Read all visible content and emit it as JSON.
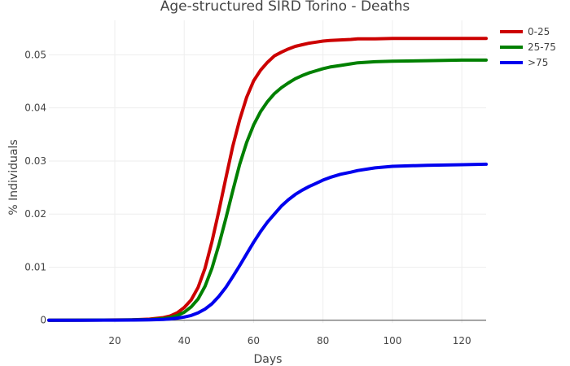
{
  "chart_data": {
    "type": "line",
    "title": "Age-structured SIRD Torino - Deaths",
    "xlabel": "Days",
    "ylabel": "% Individuals",
    "xlim": [
      1,
      127
    ],
    "ylim": [
      -0.0005,
      0.0565
    ],
    "grid": true,
    "legend_position": "top-right",
    "x_ticks": [
      20,
      40,
      60,
      80,
      100,
      120
    ],
    "x_tick_labels": [
      "20",
      "40",
      "60",
      "80",
      "100",
      "120"
    ],
    "y_ticks": [
      0,
      0.01,
      0.02,
      0.03,
      0.04,
      0.05
    ],
    "y_tick_labels": [
      "0",
      "0.01",
      "0.02",
      "0.03",
      "0.04",
      "0.05"
    ],
    "series": [
      {
        "name": "0-25",
        "color": "#cc0000",
        "x": [
          1,
          10,
          20,
          25,
          30,
          34,
          36,
          38,
          40,
          42,
          44,
          46,
          48,
          50,
          52,
          54,
          56,
          58,
          60,
          62,
          64,
          66,
          68,
          70,
          72,
          74,
          76,
          78,
          80,
          82,
          85,
          88,
          90,
          95,
          100,
          110,
          120,
          127
        ],
        "values": [
          0,
          2e-05,
          5e-05,
          8e-05,
          0.0002,
          0.0005,
          0.0008,
          0.0014,
          0.0024,
          0.0038,
          0.0062,
          0.0098,
          0.0148,
          0.0206,
          0.0268,
          0.0328,
          0.0378,
          0.042,
          0.0451,
          0.0471,
          0.0486,
          0.0498,
          0.0505,
          0.0511,
          0.0516,
          0.0519,
          0.0522,
          0.0524,
          0.0526,
          0.0527,
          0.0528,
          0.0529,
          0.053,
          0.053,
          0.0531,
          0.0531,
          0.0531,
          0.0531
        ]
      },
      {
        "name": "25-75",
        "color": "#008000",
        "x": [
          1,
          10,
          20,
          25,
          30,
          34,
          36,
          38,
          40,
          42,
          44,
          46,
          48,
          50,
          52,
          54,
          56,
          58,
          60,
          62,
          64,
          66,
          68,
          70,
          72,
          74,
          76,
          78,
          80,
          82,
          85,
          88,
          90,
          95,
          100,
          110,
          120,
          127
        ],
        "values": [
          0,
          2e-05,
          4e-05,
          6e-05,
          0.00012,
          0.0003,
          0.0005,
          0.0009,
          0.0015,
          0.0025,
          0.004,
          0.0064,
          0.0098,
          0.0142,
          0.0192,
          0.0244,
          0.0294,
          0.0335,
          0.0368,
          0.0393,
          0.0412,
          0.0427,
          0.0438,
          0.0447,
          0.0455,
          0.0461,
          0.0466,
          0.047,
          0.0474,
          0.0477,
          0.048,
          0.0483,
          0.0485,
          0.0487,
          0.0488,
          0.0489,
          0.049,
          0.049
        ]
      },
      {
        "name": ">75",
        "color": "#0000ee",
        "x": [
          1,
          10,
          20,
          25,
          30,
          34,
          36,
          38,
          40,
          42,
          44,
          46,
          48,
          50,
          52,
          54,
          56,
          58,
          60,
          62,
          64,
          66,
          68,
          70,
          72,
          74,
          76,
          78,
          80,
          82,
          85,
          88,
          90,
          95,
          100,
          110,
          120,
          127
        ],
        "values": [
          0,
          1e-05,
          2e-05,
          4e-05,
          8e-05,
          0.00015,
          0.00025,
          0.0004,
          0.0006,
          0.0009,
          0.0014,
          0.0021,
          0.0031,
          0.0045,
          0.0062,
          0.0082,
          0.0103,
          0.0125,
          0.0147,
          0.0167,
          0.0185,
          0.02,
          0.0215,
          0.0227,
          0.0237,
          0.0245,
          0.0252,
          0.0258,
          0.0264,
          0.0269,
          0.0275,
          0.0279,
          0.0282,
          0.0287,
          0.029,
          0.0292,
          0.0293,
          0.0294
        ]
      }
    ]
  }
}
